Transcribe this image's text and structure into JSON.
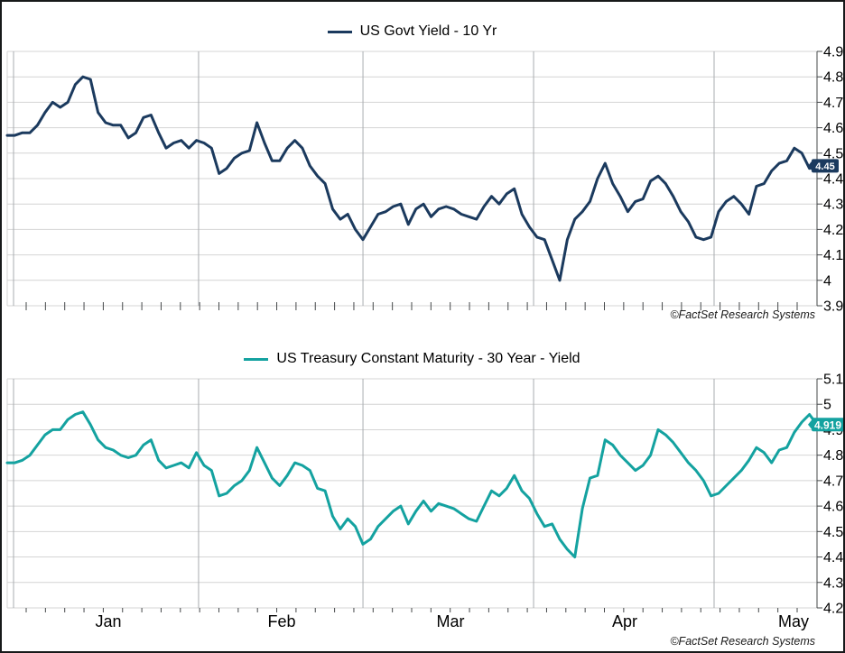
{
  "window": {
    "background": "#ffffff",
    "frame_color": "#17191a",
    "grid_color": "#d4d4d4",
    "month_line_color": "#a9acb0",
    "axis_color": "#45484a",
    "label_color": "#000000"
  },
  "chart_data": [
    {
      "type": "line",
      "title": "US Govt Yield - 10 Yr",
      "legend_position": "top-center",
      "line_color": "#1b3a5e",
      "last_value": 4.45,
      "last_value_label": "4.45",
      "attribution": "©FactSet Research Systems",
      "grid": true,
      "x_tick_labels": [],
      "y_axis": {
        "side": "right",
        "min": 3.9,
        "max": 4.9,
        "tick_labels": [
          "4.9",
          "4.8",
          "4.7",
          "4.6",
          "4.5",
          "4.4",
          "4.3",
          "4.2",
          "4.1",
          "4",
          "3.9"
        ]
      },
      "series": [
        {
          "name": "US Govt Yield - 10 Yr",
          "values": [
            4.57,
            4.57,
            4.58,
            4.58,
            4.61,
            4.66,
            4.7,
            4.68,
            4.7,
            4.77,
            4.8,
            4.79,
            4.66,
            4.62,
            4.61,
            4.61,
            4.56,
            4.58,
            4.64,
            4.65,
            4.58,
            4.52,
            4.54,
            4.55,
            4.52,
            4.55,
            4.54,
            4.52,
            4.42,
            4.44,
            4.48,
            4.5,
            4.51,
            4.62,
            4.54,
            4.47,
            4.47,
            4.52,
            4.55,
            4.52,
            4.45,
            4.41,
            4.38,
            4.28,
            4.24,
            4.26,
            4.2,
            4.16,
            4.21,
            4.26,
            4.27,
            4.29,
            4.3,
            4.22,
            4.28,
            4.3,
            4.25,
            4.28,
            4.29,
            4.28,
            4.26,
            4.25,
            4.24,
            4.29,
            4.33,
            4.3,
            4.34,
            4.36,
            4.26,
            4.21,
            4.17,
            4.16,
            4.08,
            4.0,
            4.16,
            4.24,
            4.27,
            4.31,
            4.4,
            4.46,
            4.38,
            4.33,
            4.27,
            4.31,
            4.32,
            4.39,
            4.41,
            4.38,
            4.33,
            4.27,
            4.23,
            4.17,
            4.16,
            4.17,
            4.27,
            4.31,
            4.33,
            4.3,
            4.26,
            4.37,
            4.38,
            4.43,
            4.46,
            4.47,
            4.52,
            4.5,
            4.44,
            4.45
          ]
        }
      ]
    },
    {
      "type": "line",
      "title": "US Treasury Constant Maturity - 30 Year - Yield",
      "legend_position": "top-center",
      "line_color": "#14a2a0",
      "last_value": 4.92,
      "last_value_label": "4.919",
      "attribution": "©FactSet Research Systems",
      "grid": true,
      "x_tick_labels": [
        "Jan",
        "Feb",
        "Mar",
        "Apr",
        "May"
      ],
      "y_axis": {
        "side": "right",
        "min": 4.2,
        "max": 5.1,
        "tick_labels": [
          "5.1",
          "5",
          "4.9",
          "4.8",
          "4.7",
          "4.6",
          "4.5",
          "4.4",
          "4.3",
          "4.2"
        ]
      },
      "series": [
        {
          "name": "US Treasury Constant Maturity - 30 Year - Yield",
          "values": [
            4.77,
            4.77,
            4.78,
            4.8,
            4.84,
            4.88,
            4.9,
            4.9,
            4.94,
            4.96,
            4.97,
            4.92,
            4.86,
            4.83,
            4.82,
            4.8,
            4.79,
            4.8,
            4.84,
            4.86,
            4.78,
            4.75,
            4.76,
            4.77,
            4.75,
            4.81,
            4.76,
            4.74,
            4.64,
            4.65,
            4.68,
            4.7,
            4.74,
            4.83,
            4.77,
            4.71,
            4.68,
            4.72,
            4.77,
            4.76,
            4.74,
            4.67,
            4.66,
            4.56,
            4.51,
            4.55,
            4.52,
            4.45,
            4.47,
            4.52,
            4.55,
            4.58,
            4.6,
            4.53,
            4.58,
            4.62,
            4.58,
            4.61,
            4.6,
            4.59,
            4.57,
            4.55,
            4.54,
            4.6,
            4.66,
            4.64,
            4.67,
            4.72,
            4.66,
            4.63,
            4.57,
            4.52,
            4.53,
            4.47,
            4.43,
            4.4,
            4.59,
            4.71,
            4.72,
            4.86,
            4.84,
            4.8,
            4.77,
            4.74,
            4.76,
            4.8,
            4.9,
            4.88,
            4.85,
            4.81,
            4.77,
            4.74,
            4.7,
            4.64,
            4.65,
            4.68,
            4.71,
            4.74,
            4.78,
            4.83,
            4.81,
            4.77,
            4.82,
            4.83,
            4.89,
            4.93,
            4.96,
            4.92
          ]
        }
      ]
    }
  ]
}
